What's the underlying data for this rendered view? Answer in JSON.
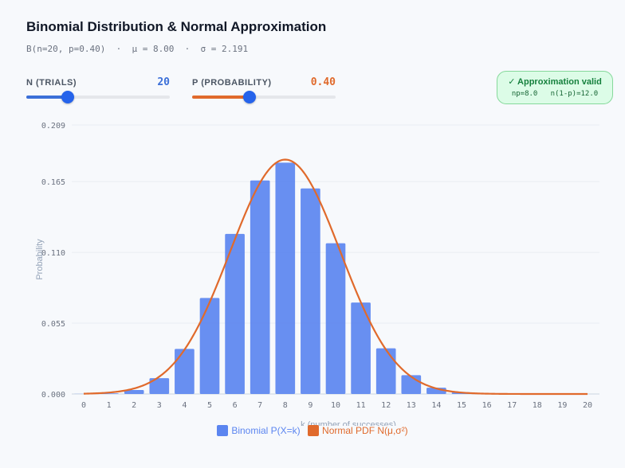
{
  "header": {
    "title": "Binomial Distribution & Normal Approximation",
    "subtitle": "B(n=20, p=0.40)  ·  μ = 8.00  ·  σ = 2.191"
  },
  "controls": {
    "n": {
      "label": "N (TRIALS)",
      "value": "20",
      "fraction": 0.29,
      "color": "#3b6fd8"
    },
    "p": {
      "label": "P (PROBABILITY)",
      "value": "0.40",
      "fraction": 0.4,
      "color": "#e06a2c"
    }
  },
  "badge": {
    "title": "✓ Approximation valid",
    "detail": "np=8.0   n(1-p)=12.0"
  },
  "legend": {
    "binomial": "Binomial P(X=k)",
    "normal": "Normal PDF N(μ,σ²)"
  },
  "chart_data": {
    "type": "bar",
    "categories": [
      "0",
      "1",
      "2",
      "3",
      "4",
      "5",
      "6",
      "7",
      "8",
      "9",
      "10",
      "11",
      "12",
      "13",
      "14",
      "15",
      "16",
      "17",
      "18",
      "19",
      "20"
    ],
    "series": [
      {
        "name": "Binomial P(X=k)",
        "type": "bar",
        "color": "#5b85f0",
        "values": [
          4e-05,
          0.0005,
          0.0031,
          0.0123,
          0.035,
          0.0746,
          0.1244,
          0.1659,
          0.1797,
          0.1597,
          0.1171,
          0.071,
          0.0355,
          0.0146,
          0.0049,
          0.0013,
          0.0003,
          4e-05,
          0.0,
          0.0,
          0.0
        ]
      },
      {
        "name": "Normal PDF N(μ,σ²)",
        "type": "line",
        "color": "#e06a2c",
        "mu": 8.0,
        "sigma": 2.191
      }
    ],
    "xlabel": "k (number of successes)",
    "ylabel": "Probability",
    "yticks": [
      "0.000",
      "0.055",
      "0.110",
      "0.165",
      "0.209"
    ],
    "ylim": [
      0,
      0.209
    ],
    "grid": true,
    "legend_position": "bottom"
  }
}
